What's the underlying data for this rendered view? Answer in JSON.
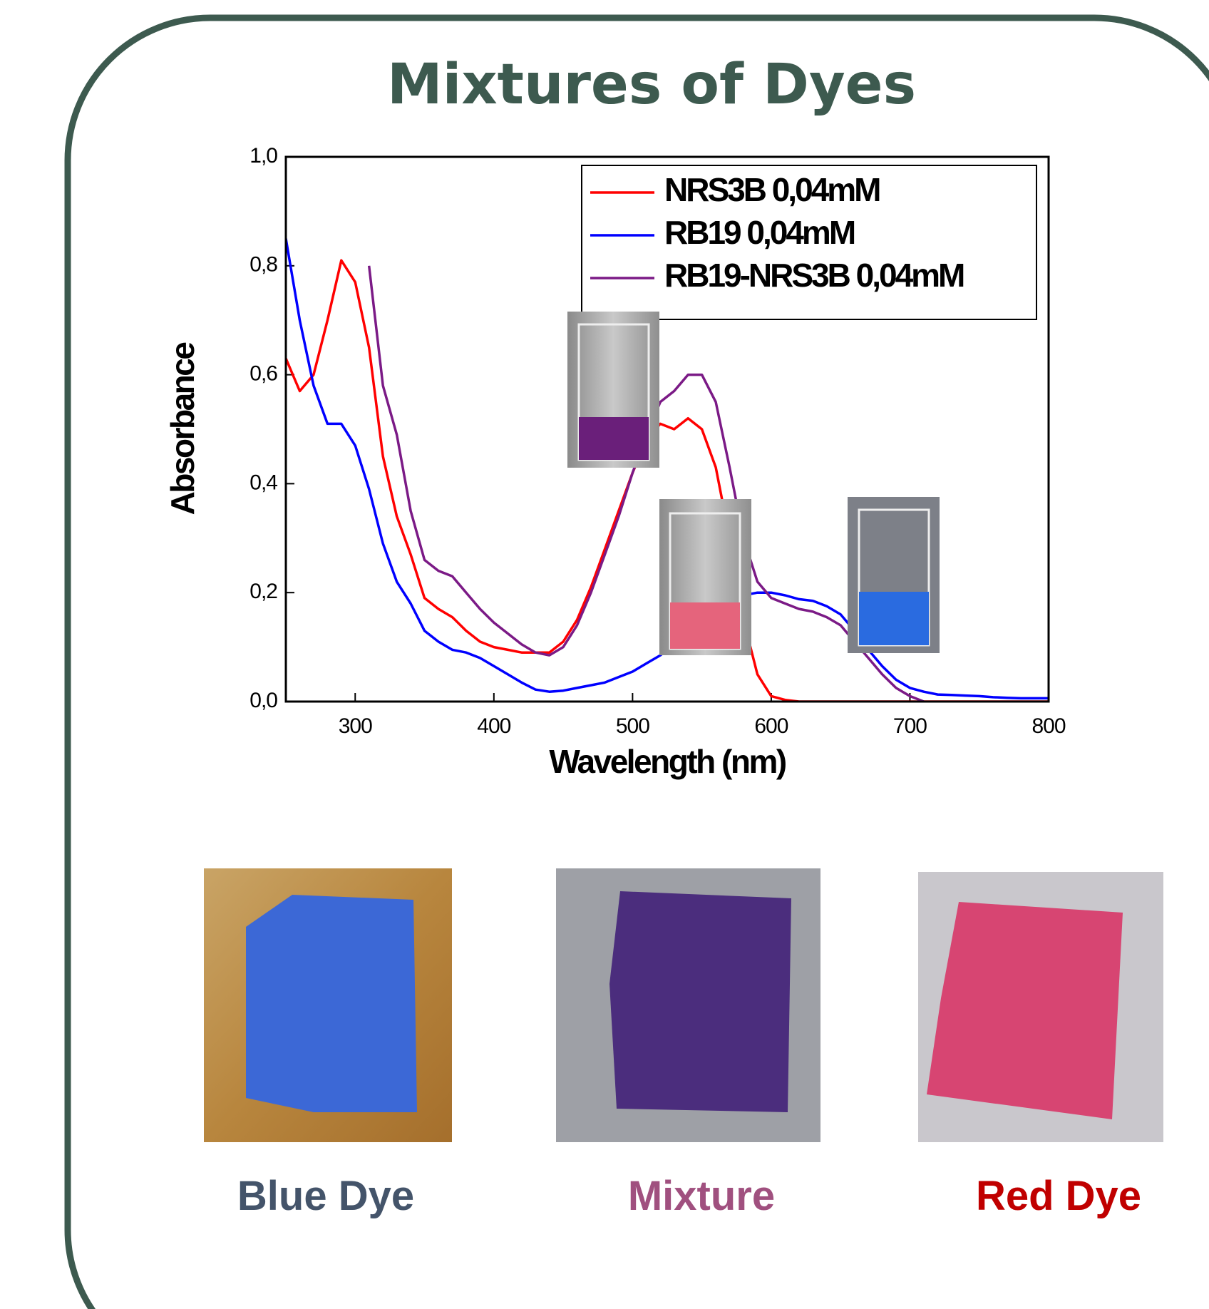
{
  "chart_data": {
    "type": "line",
    "title": "Mixtures of Dyes",
    "x_label": "Wavelength (nm)",
    "y_label": "Absorbance",
    "x": [
      250,
      260,
      270,
      280,
      290,
      300,
      310,
      320,
      330,
      340,
      350,
      360,
      370,
      380,
      390,
      400,
      410,
      420,
      430,
      440,
      450,
      460,
      470,
      480,
      490,
      500,
      510,
      520,
      530,
      540,
      550,
      560,
      570,
      580,
      590,
      600,
      610,
      620,
      630,
      640,
      650,
      660,
      670,
      680,
      690,
      700,
      710,
      720,
      730,
      740,
      750,
      760,
      770,
      780,
      790,
      800
    ],
    "series": [
      {
        "name": "NRS3B 0,04mM",
        "color": "#ff0000",
        "values": [
          0.63,
          0.57,
          0.6,
          0.7,
          0.81,
          0.77,
          0.65,
          0.45,
          0.34,
          0.27,
          0.19,
          0.17,
          0.155,
          0.13,
          0.11,
          0.1,
          0.095,
          0.09,
          0.09,
          0.09,
          0.11,
          0.15,
          0.21,
          0.28,
          0.35,
          0.42,
          0.48,
          0.51,
          0.5,
          0.52,
          0.5,
          0.43,
          0.3,
          0.15,
          0.05,
          0.01,
          0.003,
          0,
          0,
          0,
          0,
          0,
          0,
          0,
          0,
          0,
          0,
          0,
          0,
          0,
          0,
          0,
          0,
          0,
          0,
          0
        ]
      },
      {
        "name": "RB19 0,04mM",
        "color": "#0000ff",
        "values": [
          0.85,
          0.7,
          0.58,
          0.51,
          0.51,
          0.47,
          0.39,
          0.29,
          0.22,
          0.18,
          0.13,
          0.11,
          0.095,
          0.09,
          0.08,
          0.065,
          0.05,
          0.035,
          0.022,
          0.018,
          0.02,
          0.025,
          0.03,
          0.035,
          0.045,
          0.055,
          0.07,
          0.085,
          0.105,
          0.13,
          0.15,
          0.17,
          0.185,
          0.195,
          0.2,
          0.2,
          0.195,
          0.188,
          0.185,
          0.175,
          0.16,
          0.13,
          0.095,
          0.065,
          0.04,
          0.025,
          0.018,
          0.013,
          0.012,
          0.011,
          0.01,
          0.008,
          0.007,
          0.006,
          0.006,
          0.006
        ]
      },
      {
        "name": "RB19-NRS3B 0,04mM",
        "color": "#7b1a86",
        "values": [
          null,
          null,
          null,
          null,
          null,
          null,
          0.8,
          0.58,
          0.49,
          0.35,
          0.26,
          0.24,
          0.23,
          0.2,
          0.17,
          0.145,
          0.125,
          0.105,
          0.09,
          0.085,
          0.1,
          0.14,
          0.2,
          0.27,
          0.34,
          0.42,
          0.49,
          0.55,
          0.57,
          0.6,
          0.6,
          0.55,
          0.43,
          0.3,
          0.22,
          0.19,
          0.18,
          0.17,
          0.165,
          0.155,
          0.14,
          0.11,
          0.08,
          0.05,
          0.025,
          0.01,
          0,
          null,
          null,
          null,
          null,
          null,
          null,
          null,
          null,
          null
        ]
      }
    ],
    "xlim": [
      250,
      800
    ],
    "xticks": [
      300,
      400,
      500,
      600,
      700,
      800
    ],
    "ylim": [
      0,
      1
    ],
    "yticks": [
      {
        "value": 0,
        "label": "0,0"
      },
      {
        "value": 0.2,
        "label": "0,2"
      },
      {
        "value": 0.4,
        "label": "0,4"
      },
      {
        "value": 0.6,
        "label": "0,6"
      },
      {
        "value": 0.8,
        "label": "0,8"
      },
      {
        "value": 1,
        "label": "1,0"
      }
    ],
    "legend": "upper-right"
  },
  "swatches": [
    "Blue Dye",
    "Mixture",
    "Red Dye"
  ]
}
